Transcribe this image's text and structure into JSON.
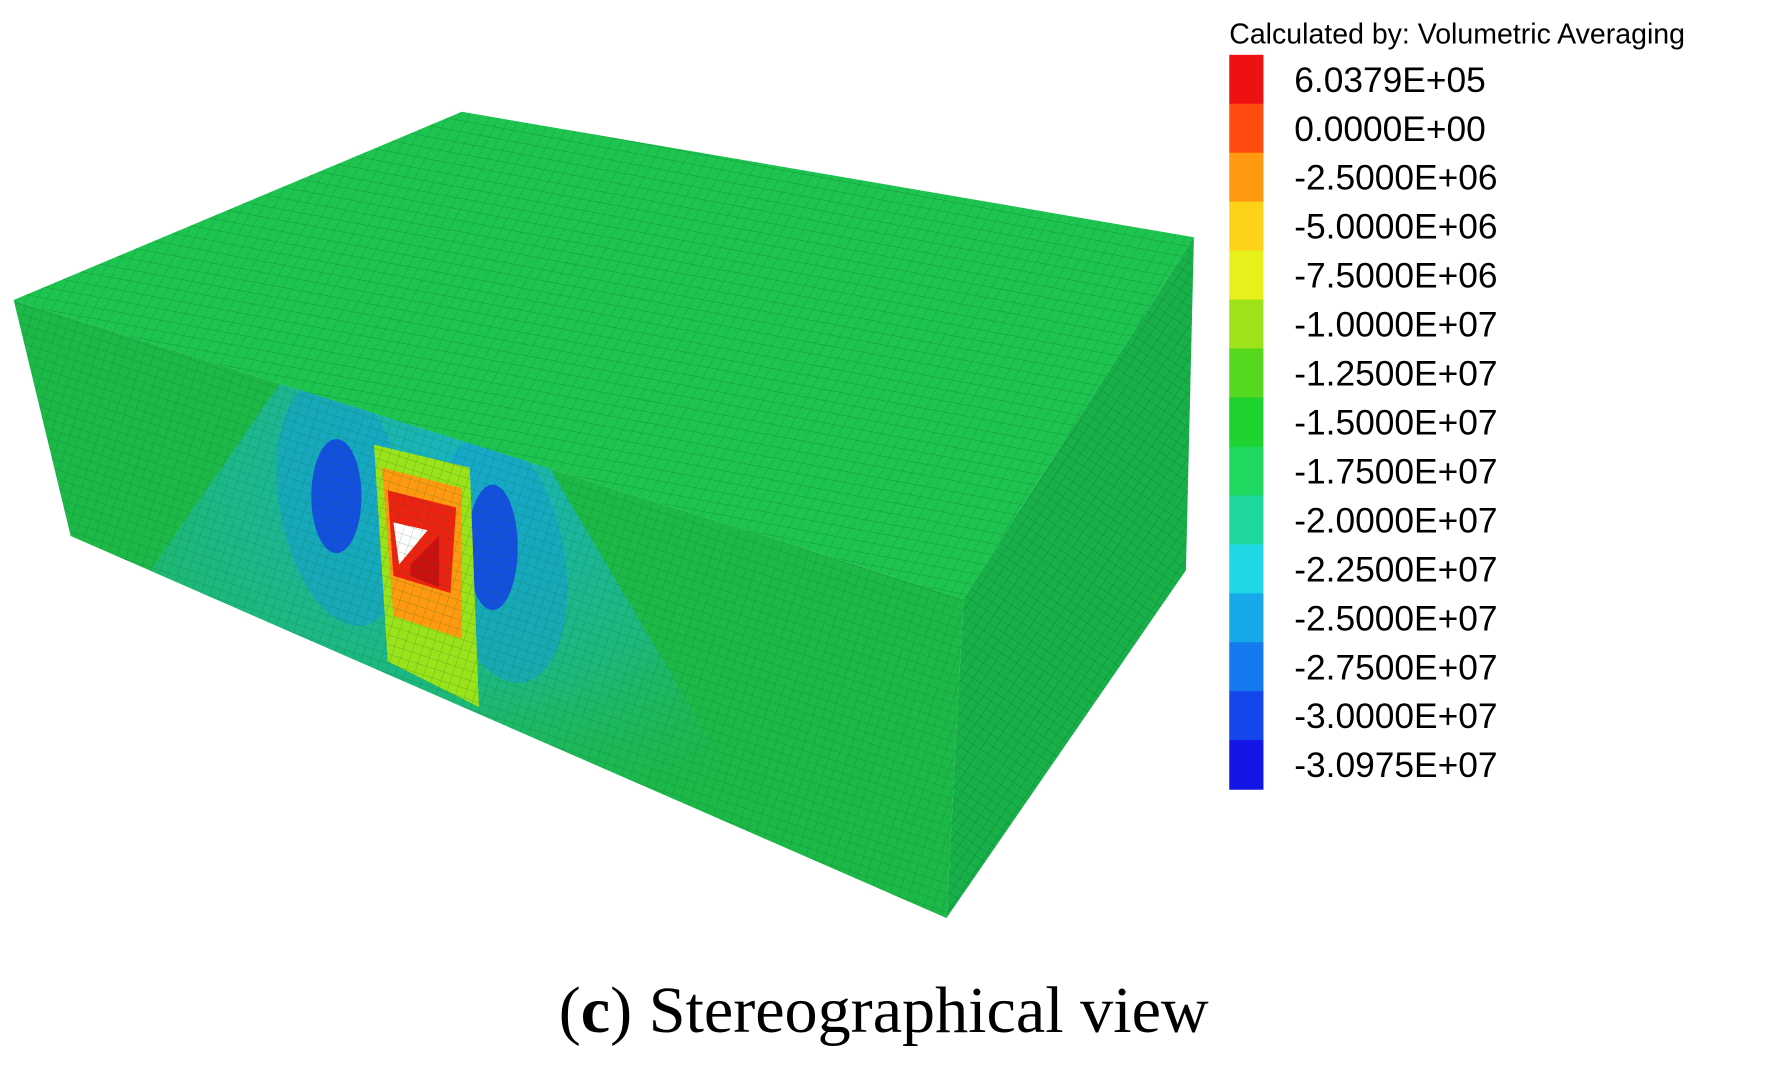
{
  "legend": {
    "title": "Calculated by: Volumetric Averaging",
    "entries": [
      {
        "label": "6.0379E+05",
        "color": "#ee1111"
      },
      {
        "label": "0.0000E+00",
        "color": "#ff4a10"
      },
      {
        "label": "-2.5000E+06",
        "color": "#ff9a10"
      },
      {
        "label": "-5.0000E+06",
        "color": "#ffd21a"
      },
      {
        "label": "-7.5000E+06",
        "color": "#e6f01a"
      },
      {
        "label": "-1.0000E+07",
        "color": "#9ee21a"
      },
      {
        "label": "-1.2500E+07",
        "color": "#55d81e"
      },
      {
        "label": "-1.5000E+07",
        "color": "#1ed230"
      },
      {
        "label": "-1.7500E+07",
        "color": "#1ed860"
      },
      {
        "label": "-2.0000E+07",
        "color": "#1ed8a0"
      },
      {
        "label": "-2.2500E+07",
        "color": "#1ed8e6"
      },
      {
        "label": "-2.5000E+07",
        "color": "#16a8e8"
      },
      {
        "label": "-2.7500E+07",
        "color": "#1478ee"
      },
      {
        "label": "-3.0000E+07",
        "color": "#1446ee"
      },
      {
        "label": "-3.0975E+07",
        "color": "#1414e6"
      }
    ]
  },
  "caption": {
    "prefix": "(",
    "label": "c",
    "text": ") Stereographical view"
  }
}
